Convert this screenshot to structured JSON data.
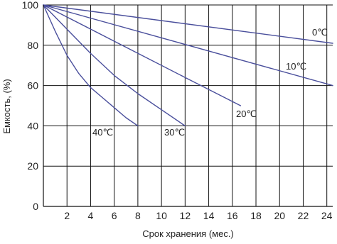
{
  "chart_data": {
    "type": "line",
    "title": "",
    "xlabel": "Срок хранения (мес.)",
    "ylabel": "Емкость, (%)",
    "xlim": [
      0,
      24.5
    ],
    "ylim": [
      0,
      100
    ],
    "x_ticks": [
      2,
      4,
      6,
      8,
      10,
      12,
      14,
      16,
      18,
      20,
      22,
      24
    ],
    "y_ticks": [
      0,
      20,
      40,
      60,
      80,
      100
    ],
    "grid": true,
    "legend": "none",
    "line_color": "#4a4f9c",
    "series": [
      {
        "name": "0℃",
        "x": [
          0,
          24.5
        ],
        "y": [
          100,
          81
        ]
      },
      {
        "name": "10℃",
        "x": [
          0,
          24.5
        ],
        "y": [
          100,
          60
        ]
      },
      {
        "name": "20℃",
        "x": [
          0,
          6,
          12,
          16.7
        ],
        "y": [
          100,
          82,
          64,
          50
        ]
      },
      {
        "name": "30℃",
        "x": [
          0,
          2,
          4,
          6,
          8,
          10,
          12
        ],
        "y": [
          100,
          88,
          76,
          65,
          56,
          48,
          40
        ]
      },
      {
        "name": "40℃",
        "x": [
          0,
          1,
          2,
          3,
          4,
          5,
          6,
          7,
          8
        ],
        "y": [
          100,
          87,
          75,
          66,
          59,
          54,
          49,
          44,
          40
        ]
      }
    ]
  }
}
